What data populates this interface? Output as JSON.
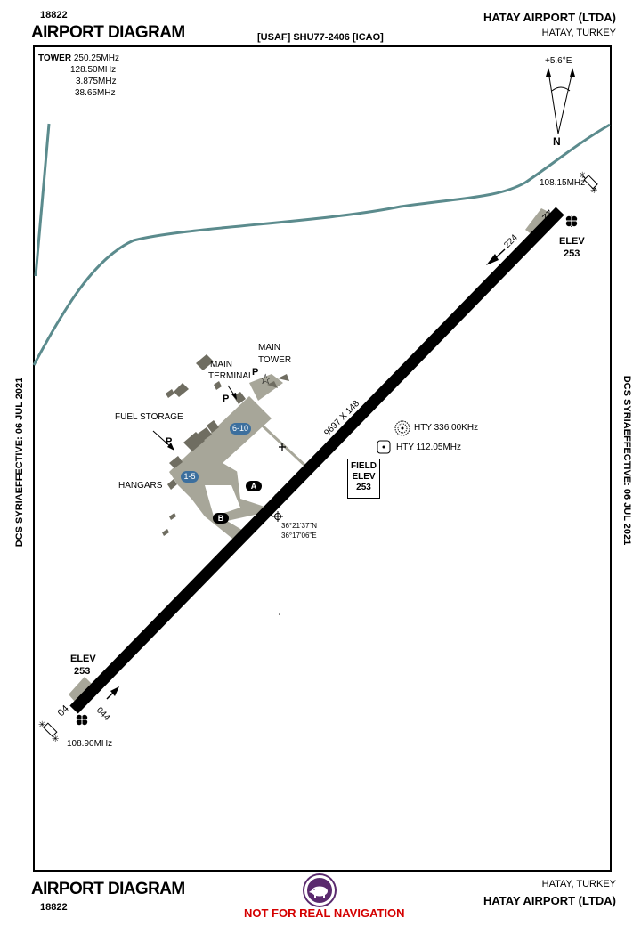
{
  "header": {
    "chart_number": "18822",
    "title": "AIRPORT DIAGRAM",
    "identifier": "[USAF] SHU77-2406 [ICAO]",
    "airport_name": "HATAY AIRPORT (LTDA)",
    "location": "HATAY, TURKEY"
  },
  "footer": {
    "chart_number": "18822",
    "title": "AIRPORT DIAGRAM",
    "airport_name": "HATAY AIRPORT (LTDA)",
    "location": "HATAY, TURKEY",
    "warning": "NOT FOR REAL NAVIGATION"
  },
  "side_text": {
    "left": "DCS SYRIAEFFECTIVE: 06 JUL 2021",
    "right": "DCS SYRIAEFFECTIVE: 06 JUL 2021"
  },
  "tower": {
    "label": "TOWER",
    "frequencies": [
      "250.25MHz",
      "128.50MHz",
      "3.875MHz",
      "38.65MHz"
    ]
  },
  "compass": {
    "variation": "+5.6°E",
    "north": "N"
  },
  "runway": {
    "dimensions": "9697 X 148",
    "end_ne": "22",
    "end_sw": "04",
    "heading_ne": "224",
    "heading_sw": "044",
    "elev_ne_label": "ELEV",
    "elev_ne_value": "253",
    "elev_sw_label": "ELEV",
    "elev_sw_value": "253",
    "ils_ne": "108.15MHz",
    "ils_sw": "108.90MHz"
  },
  "field_elevation": {
    "line1": "FIELD",
    "line2": "ELEV",
    "value": "253"
  },
  "navaids": {
    "ndb": "HTY 336.00KHz",
    "vor": "HTY 112.05MHz"
  },
  "arp": {
    "lat": "36°21'37\"N",
    "lon": "36°17'06\"E"
  },
  "labels": {
    "main_terminal_1": "MAIN",
    "main_terminal_2": "TERMINAL",
    "main_tower_1": "MAIN",
    "main_tower_2": "TOWER",
    "fuel_storage": "FUEL STORAGE",
    "hangars": "HANGARS",
    "parking": "P",
    "stand_a": "1-5",
    "stand_b": "6-10",
    "taxiway_a": "A",
    "taxiway_b": "B"
  },
  "colors": {
    "runway": "#000000",
    "apron": "#a7a699",
    "building": "#6f6d61",
    "road": "#5b8b8d",
    "stand_badge": "#3c6f9e",
    "warning": "#d40000",
    "logo": "#5a2a6e"
  }
}
